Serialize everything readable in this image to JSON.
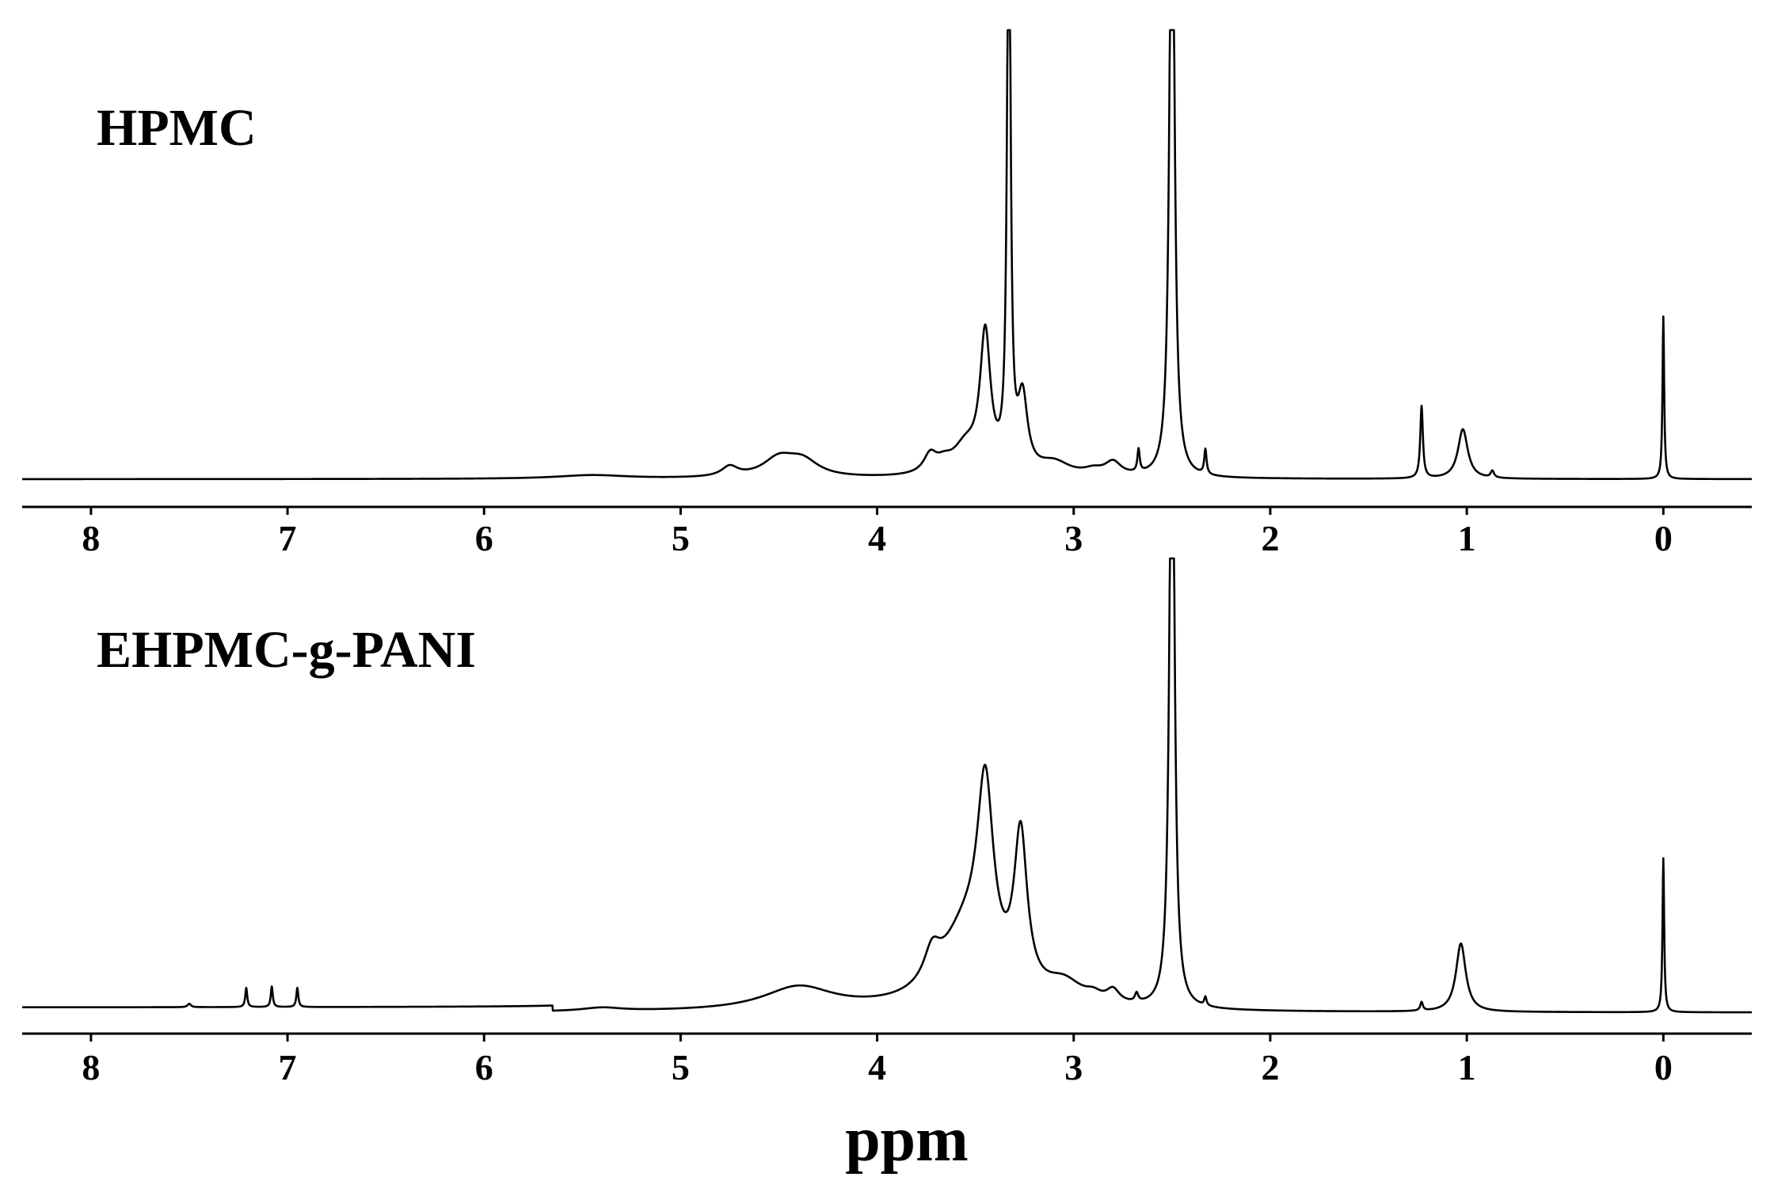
{
  "figure": {
    "xlabel": "ppm"
  },
  "chart_data": [
    {
      "type": "line",
      "title": "HPMC",
      "xlabel": "",
      "ylabel": "",
      "xlim": [
        8.35,
        -0.45
      ],
      "x_reversed": true,
      "ylim": [
        0,
        1
      ],
      "xticks": [
        8,
        7,
        6,
        5,
        4,
        3,
        2,
        1,
        0
      ],
      "grid": false,
      "baseline_steps": [],
      "peaks": [
        {
          "ppm": 5.45,
          "height": 0.008,
          "width": 0.22
        },
        {
          "ppm": 4.75,
          "height": 0.022,
          "width": 0.05
        },
        {
          "ppm": 4.5,
          "height": 0.04,
          "width": 0.1
        },
        {
          "ppm": 4.38,
          "height": 0.035,
          "width": 0.1
        },
        {
          "ppm": 3.73,
          "height": 0.04,
          "width": 0.04
        },
        {
          "ppm": 3.66,
          "height": 0.02,
          "width": 0.05
        },
        {
          "ppm": 3.55,
          "height": 0.06,
          "width": 0.08
        },
        {
          "ppm": 3.45,
          "height": 0.3,
          "width": 0.032
        },
        {
          "ppm": 3.33,
          "height": 1.4,
          "width": 0.01
        },
        {
          "ppm": 3.26,
          "height": 0.16,
          "width": 0.03
        },
        {
          "ppm": 3.1,
          "height": 0.03,
          "width": 0.1
        },
        {
          "ppm": 2.9,
          "height": 0.012,
          "width": 0.06
        },
        {
          "ppm": 2.8,
          "height": 0.03,
          "width": 0.05
        },
        {
          "ppm": 2.67,
          "height": 0.05,
          "width": 0.007
        },
        {
          "ppm": 2.5,
          "height": 1.6,
          "width": 0.014
        },
        {
          "ppm": 2.33,
          "height": 0.055,
          "width": 0.007
        },
        {
          "ppm": 1.23,
          "height": 0.16,
          "width": 0.008
        },
        {
          "ppm": 1.02,
          "height": 0.11,
          "width": 0.03
        },
        {
          "ppm": 0.87,
          "height": 0.015,
          "width": 0.01
        },
        {
          "ppm": 0.0,
          "height": 0.36,
          "width": 0.005
        }
      ]
    },
    {
      "type": "line",
      "title": "EHPMC-g-PANI",
      "xlabel": "ppm",
      "ylabel": "",
      "xlim": [
        8.35,
        -0.45
      ],
      "x_reversed": true,
      "ylim": [
        0,
        1
      ],
      "xticks": [
        8,
        7,
        6,
        5,
        4,
        3,
        2,
        1,
        0
      ],
      "grid": false,
      "baseline_steps": [
        {
          "from_ppm": 5.65,
          "to_ppm": -0.45,
          "offset": -0.012
        }
      ],
      "peaks": [
        {
          "ppm": 7.5,
          "height": 0.008,
          "width": 0.01
        },
        {
          "ppm": 7.21,
          "height": 0.045,
          "width": 0.006
        },
        {
          "ppm": 7.08,
          "height": 0.048,
          "width": 0.006
        },
        {
          "ppm": 6.95,
          "height": 0.045,
          "width": 0.006
        },
        {
          "ppm": 5.4,
          "height": 0.008,
          "width": 0.12
        },
        {
          "ppm": 4.4,
          "height": 0.055,
          "width": 0.22
        },
        {
          "ppm": 3.72,
          "height": 0.07,
          "width": 0.05
        },
        {
          "ppm": 3.55,
          "height": 0.17,
          "width": 0.16
        },
        {
          "ppm": 3.45,
          "height": 0.43,
          "width": 0.05
        },
        {
          "ppm": 3.27,
          "height": 0.36,
          "width": 0.04
        },
        {
          "ppm": 3.05,
          "height": 0.05,
          "width": 0.12
        },
        {
          "ppm": 2.9,
          "height": 0.015,
          "width": 0.05
        },
        {
          "ppm": 2.8,
          "height": 0.03,
          "width": 0.04
        },
        {
          "ppm": 2.68,
          "height": 0.02,
          "width": 0.01
        },
        {
          "ppm": 2.5,
          "height": 1.7,
          "width": 0.014
        },
        {
          "ppm": 2.33,
          "height": 0.02,
          "width": 0.007
        },
        {
          "ppm": 1.23,
          "height": 0.02,
          "width": 0.008
        },
        {
          "ppm": 1.03,
          "height": 0.16,
          "width": 0.03
        },
        {
          "ppm": 0.0,
          "height": 0.36,
          "width": 0.005
        }
      ]
    }
  ]
}
